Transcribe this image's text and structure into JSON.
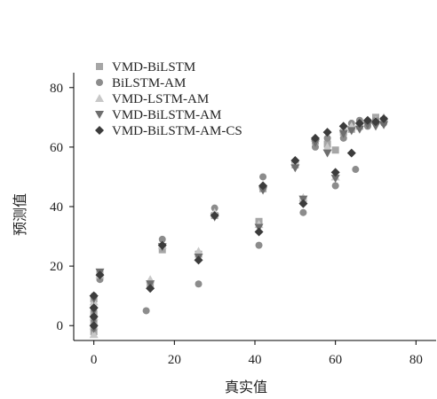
{
  "chart_data": {
    "type": "scatter",
    "xlabel": "真实值",
    "ylabel": "预测值",
    "xlim": [
      -5,
      85
    ],
    "ylim": [
      -5,
      85
    ],
    "xticks": [
      0,
      20,
      40,
      60,
      80
    ],
    "yticks": [
      0,
      20,
      40,
      60,
      80
    ],
    "grid": false,
    "legend_position": "top-left",
    "series": [
      {
        "name": "VMD-BiLSTM",
        "marker": "square",
        "color": "#a6a6a6",
        "points": [
          [
            0,
            -2
          ],
          [
            0,
            1
          ],
          [
            0,
            4
          ],
          [
            0,
            9
          ],
          [
            1.5,
            17.5
          ],
          [
            14,
            14
          ],
          [
            17,
            25.5
          ],
          [
            26,
            24
          ],
          [
            30,
            37
          ],
          [
            41,
            35
          ],
          [
            42,
            46
          ],
          [
            50,
            54
          ],
          [
            52,
            42
          ],
          [
            55,
            62
          ],
          [
            58,
            61
          ],
          [
            60,
            59
          ],
          [
            62,
            65
          ],
          [
            64,
            66
          ],
          [
            66,
            67
          ],
          [
            68,
            68
          ],
          [
            70,
            70
          ],
          [
            72,
            69
          ]
        ]
      },
      {
        "name": "BiLSTM-AM",
        "marker": "circle",
        "color": "#8c8c8c",
        "points": [
          [
            0,
            -1
          ],
          [
            0,
            2
          ],
          [
            0,
            6
          ],
          [
            0,
            10
          ],
          [
            1.5,
            15.5
          ],
          [
            13,
            5
          ],
          [
            17,
            29
          ],
          [
            26,
            14
          ],
          [
            30,
            39.5
          ],
          [
            41,
            27
          ],
          [
            42,
            50
          ],
          [
            50,
            55
          ],
          [
            52,
            38
          ],
          [
            55,
            60
          ],
          [
            58,
            63
          ],
          [
            60,
            47
          ],
          [
            62,
            63
          ],
          [
            64,
            68
          ],
          [
            65,
            52.5
          ],
          [
            66,
            69
          ],
          [
            68,
            67
          ],
          [
            70,
            69
          ],
          [
            72,
            68
          ]
        ]
      },
      {
        "name": "VMD-LSTM-AM",
        "marker": "triangle-up",
        "color": "#c8c8c8",
        "points": [
          [
            0,
            -3
          ],
          [
            0,
            0
          ],
          [
            0,
            3
          ],
          [
            0,
            8
          ],
          [
            1.5,
            17
          ],
          [
            14,
            15.5
          ],
          [
            17,
            27
          ],
          [
            26,
            25
          ],
          [
            30,
            38
          ],
          [
            41,
            34
          ],
          [
            42,
            47
          ],
          [
            50,
            55
          ],
          [
            52,
            43
          ],
          [
            55,
            63
          ],
          [
            58,
            60
          ],
          [
            60,
            50
          ],
          [
            62,
            66
          ],
          [
            64,
            67
          ],
          [
            66,
            68
          ],
          [
            68,
            69
          ],
          [
            70,
            69
          ],
          [
            72,
            70
          ]
        ]
      },
      {
        "name": "VMD-BiLSTM-AM",
        "marker": "triangle-down",
        "color": "#6e6e6e",
        "points": [
          [
            0,
            -1
          ],
          [
            0,
            2
          ],
          [
            0,
            5
          ],
          [
            0,
            9
          ],
          [
            1.5,
            18
          ],
          [
            14,
            14
          ],
          [
            17,
            26.5
          ],
          [
            26,
            23
          ],
          [
            30,
            36.5
          ],
          [
            41,
            33
          ],
          [
            42,
            45.5
          ],
          [
            50,
            53
          ],
          [
            52,
            42.5
          ],
          [
            55,
            61.5
          ],
          [
            58,
            58
          ],
          [
            60,
            49.5
          ],
          [
            62,
            64.5
          ],
          [
            64,
            65.5
          ],
          [
            66,
            66
          ],
          [
            68,
            67.5
          ],
          [
            70,
            67
          ],
          [
            72,
            67.5
          ]
        ]
      },
      {
        "name": "VMD-BiLSTM-AM-CS",
        "marker": "diamond",
        "color": "#3c3c3c",
        "points": [
          [
            0,
            0
          ],
          [
            0,
            3
          ],
          [
            0,
            6
          ],
          [
            0,
            10
          ],
          [
            1.5,
            17
          ],
          [
            14,
            12.5
          ],
          [
            17,
            27
          ],
          [
            26,
            22
          ],
          [
            30,
            37
          ],
          [
            41,
            31.5
          ],
          [
            42,
            47
          ],
          [
            50,
            55.5
          ],
          [
            52,
            41
          ],
          [
            55,
            63
          ],
          [
            58,
            65
          ],
          [
            60,
            51.5
          ],
          [
            62,
            67
          ],
          [
            64,
            58
          ],
          [
            66,
            68
          ],
          [
            68,
            69
          ],
          [
            70,
            68.5
          ],
          [
            72,
            69.5
          ]
        ]
      }
    ]
  }
}
